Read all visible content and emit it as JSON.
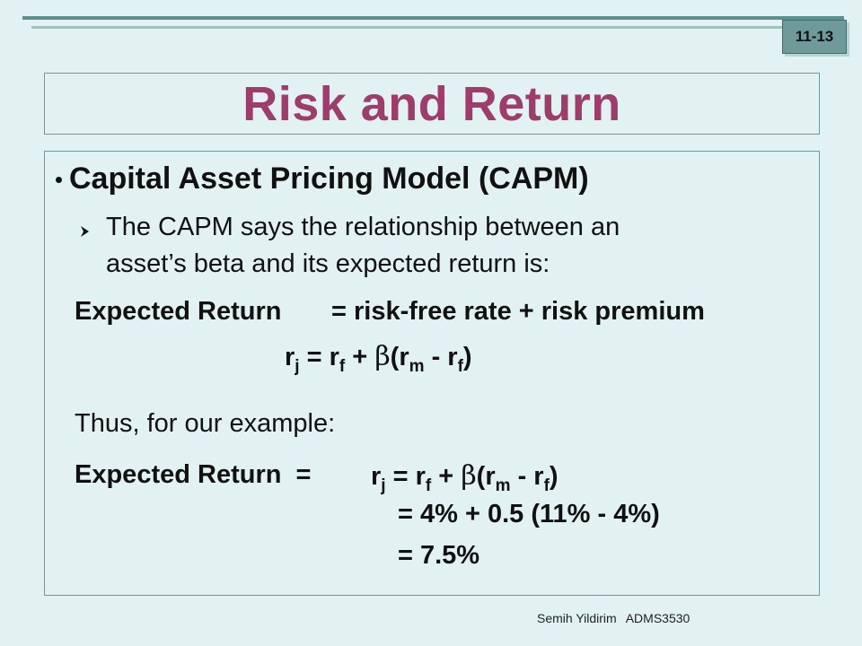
{
  "slide_number": "11-13",
  "title": "Risk and Return",
  "bullet": {
    "heading": "Capital Asset Pricing Model (CAPM)",
    "subpoint_line1": "The CAPM says the relationship between an",
    "subpoint_line2": "asset’s beta and its expected return is:"
  },
  "formula": {
    "label": "Expected Return",
    "definition": "= risk-free rate + risk premium",
    "r": "r",
    "sub_j": "j",
    "sub_f": "f",
    "sub_m": "m",
    "eq_plus": " = r",
    "plus": " + ",
    "beta": "β",
    "open_paren": "(r",
    "minus": " - r",
    "close_paren": ")"
  },
  "example": {
    "intro": "Thus, for our example:",
    "label": "Expected Return  =",
    "step2": "= 4% + 0.5 (11% - 4%)",
    "step3": "= 7.5%"
  },
  "footer": {
    "author": "Semih Yildirim",
    "course": "ADMS3530"
  }
}
